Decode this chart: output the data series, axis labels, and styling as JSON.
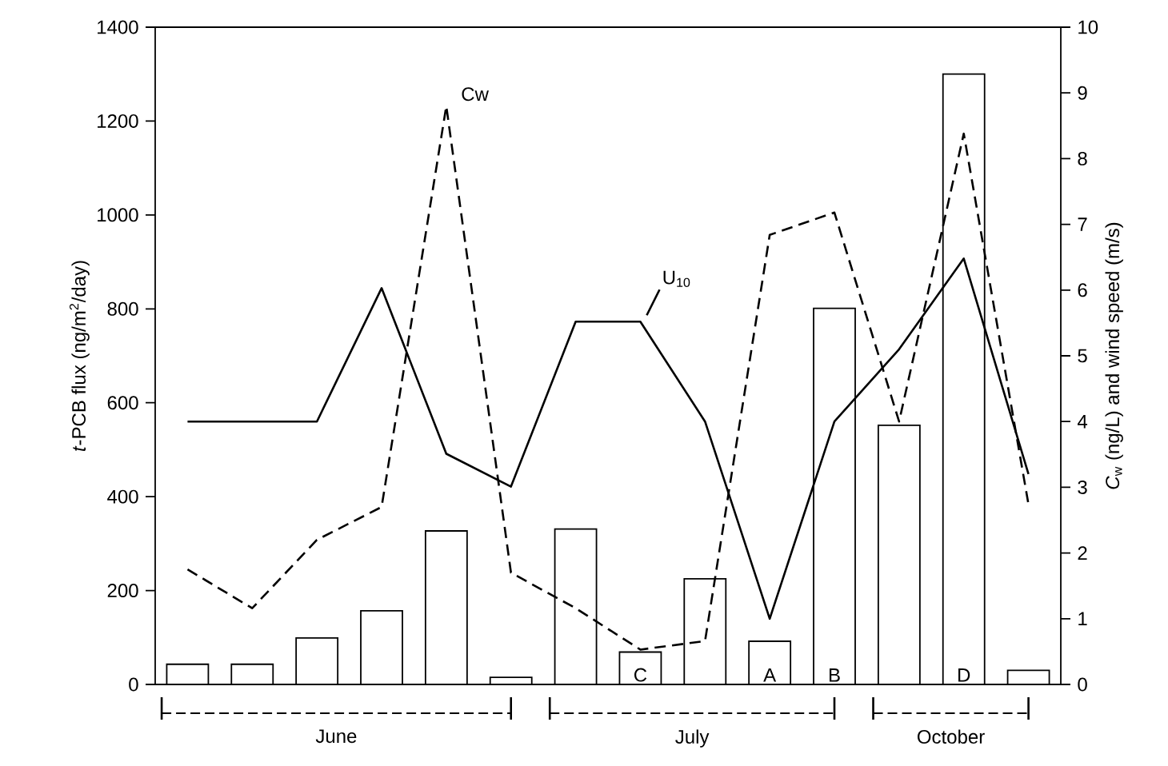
{
  "chart_data": {
    "type": "bar",
    "ylabel": "*t*-PCB flux (ng/m$^{2}$/day)",
    "y2label": "*C*$_{w}$ (ng/L) and wind speed (m/s)",
    "categories": [
      null,
      null,
      null,
      null,
      null,
      null,
      null,
      null,
      null,
      null,
      null,
      null,
      null,
      null
    ],
    "ylim": [
      0,
      1400
    ],
    "yticks": [
      0,
      200,
      400,
      600,
      800,
      1000,
      1200,
      1400
    ],
    "y2lim": [
      0,
      10
    ],
    "y2ticks": [
      0,
      1,
      2,
      3,
      4,
      5,
      6,
      7,
      8,
      9,
      10
    ],
    "series": [
      {
        "color": "#ffffff",
        "values": [
          43,
          43,
          99,
          157,
          327,
          15,
          331,
          69,
          225,
          92,
          801,
          552,
          1300,
          30
        ],
        "value_labels": [
          null,
          null,
          null,
          null,
          null,
          null,
          null,
          "C",
          null,
          "A",
          "B",
          null,
          "D",
          null
        ]
      },
      {
        "type": "line",
        "name": "Cw",
        "axis": "y2",
        "color": "#000000",
        "line_style": "dashed",
        "values": [
          1.75,
          1.16,
          2.2,
          2.7,
          8.8,
          1.7,
          1.16,
          0.53,
          0.66,
          6.84,
          7.18,
          4.0,
          8.38,
          2.74
        ]
      },
      {
        "type": "line",
        "name": "U$_{10}$",
        "axis": "y2",
        "color": "#000000",
        "line_style": "solid",
        "values": [
          4.0,
          4.0,
          4.0,
          6.03,
          3.51,
          3.01,
          5.52,
          5.52,
          4.0,
          1.0,
          4.0,
          5.1,
          6.48,
          3.2
        ]
      }
    ],
    "annotations": [
      "June",
      "July",
      "October"
    ],
    "grid": false,
    "marker": "none"
  }
}
